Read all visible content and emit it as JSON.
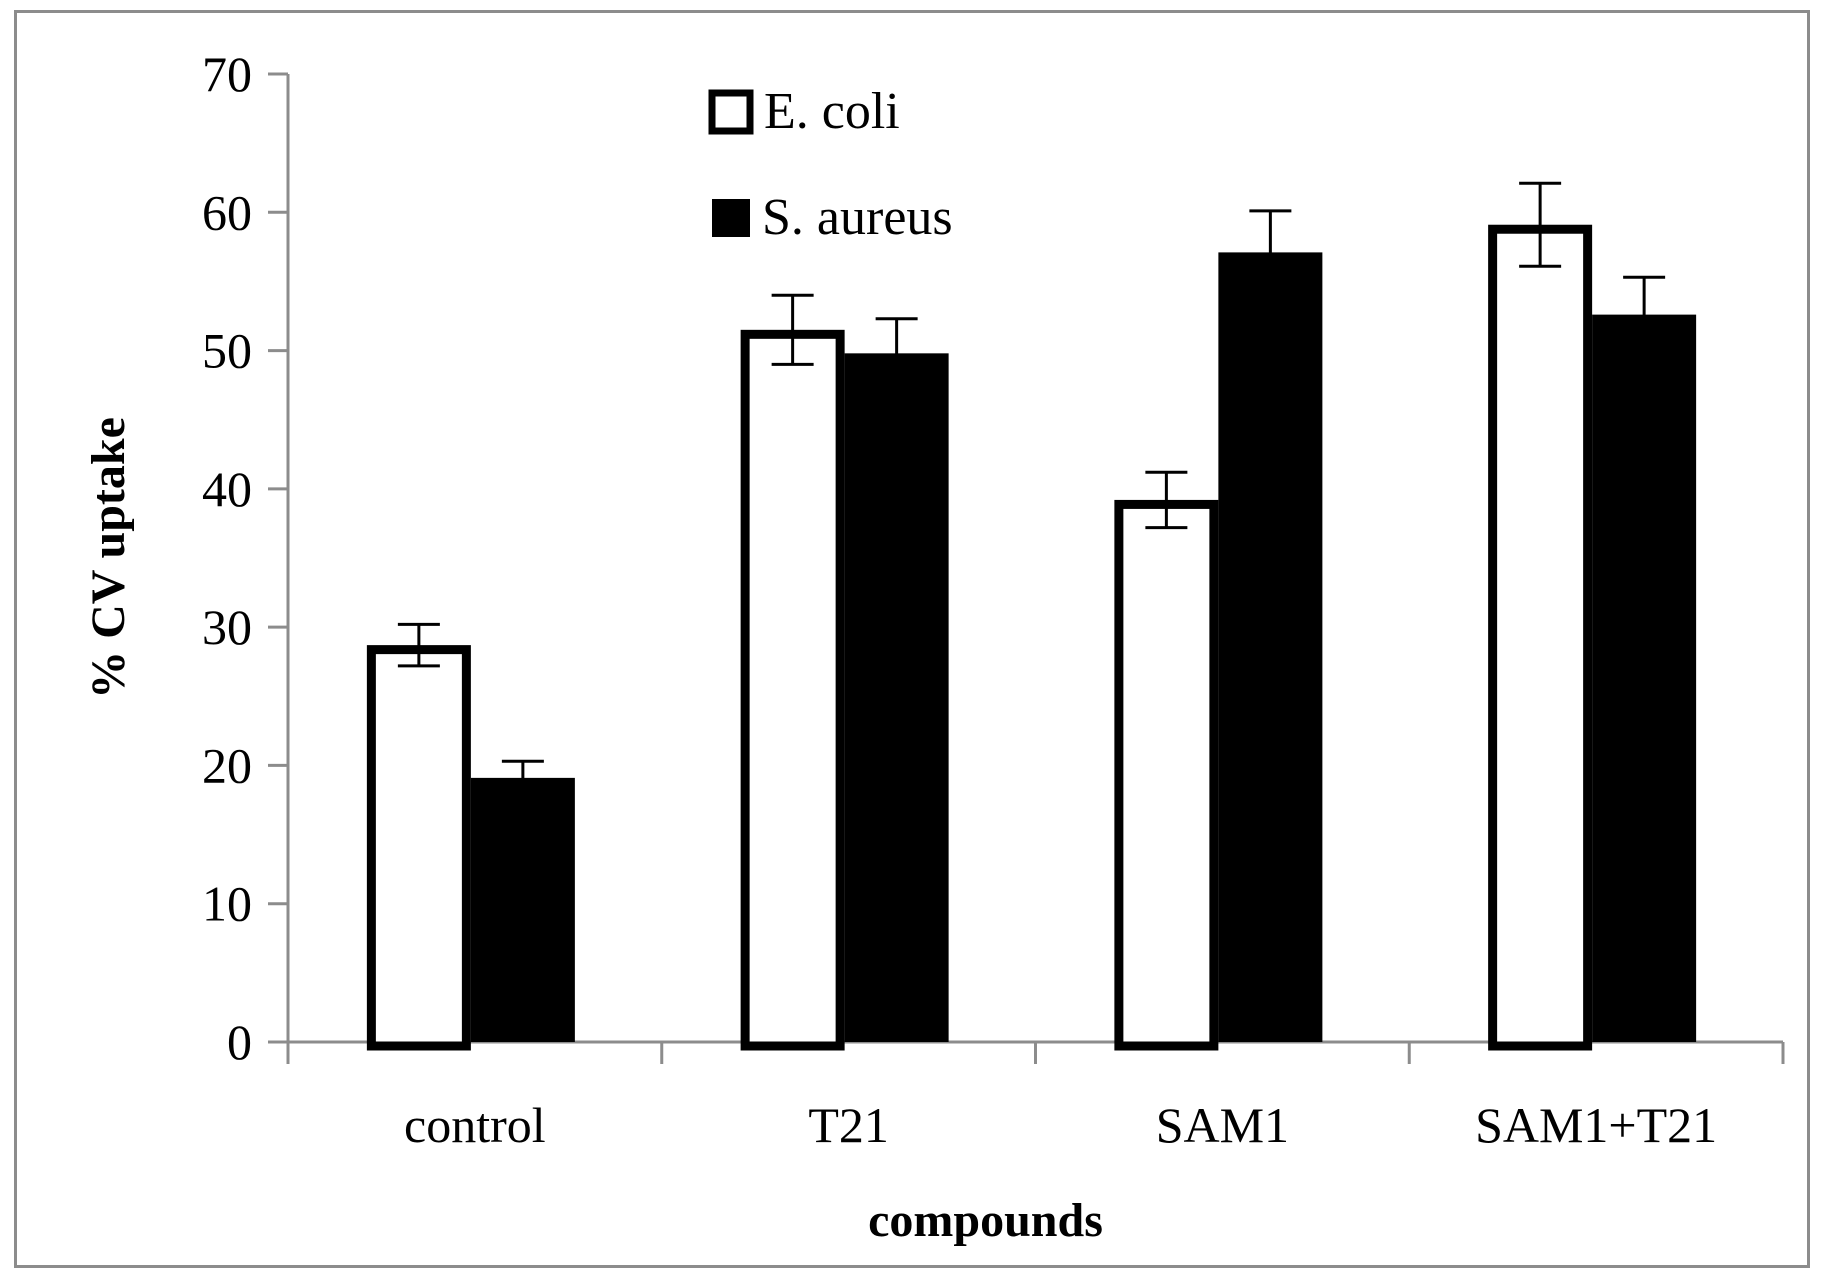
{
  "chart_data": {
    "type": "bar",
    "title": "",
    "xlabel": "compounds",
    "ylabel": "% CV uptake",
    "ylim": [
      0,
      70
    ],
    "yticks": [
      0,
      10,
      20,
      30,
      40,
      50,
      60,
      70
    ],
    "grid": false,
    "legend_position": "top-center",
    "categories": [
      "control",
      "T21",
      "SAM1",
      "SAM1+T21"
    ],
    "series": [
      {
        "name": "E. coli",
        "fill": "#ffffff",
        "stroke": "#000000",
        "values": [
          28.7,
          51.5,
          39.2,
          59.1
        ],
        "errors": [
          1.5,
          2.5,
          2.0,
          3.0
        ]
      },
      {
        "name": "S. aureus",
        "fill": "#000000",
        "stroke": "#000000",
        "values": [
          19.1,
          49.8,
          57.1,
          52.6
        ],
        "errors": [
          1.2,
          2.5,
          3.0,
          2.7
        ]
      }
    ]
  }
}
